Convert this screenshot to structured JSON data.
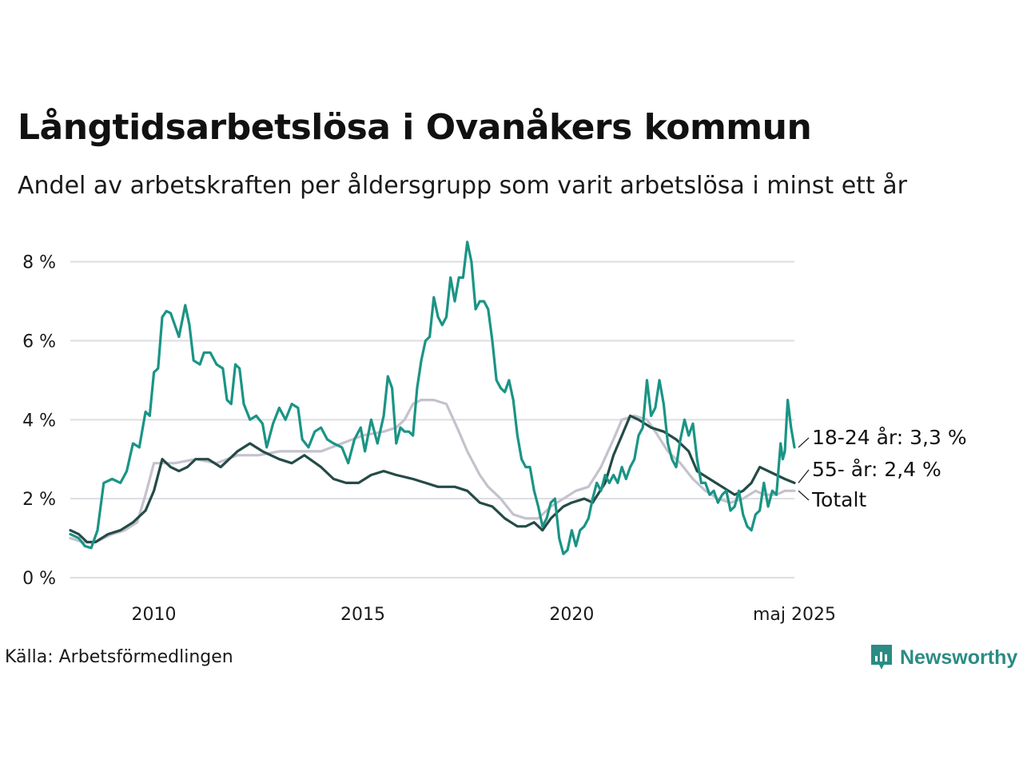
{
  "title": "Långtidsarbetslösa i Ovanåkers kommun",
  "subtitle": "Andel av arbetskraften per åldersgrupp som varit arbetslösa i minst ett år",
  "source": "Källa: Arbetsförmedlingen",
  "brand": "Newsworthy",
  "colors": {
    "accent": "#2a8c84"
  },
  "chart_data": {
    "type": "line",
    "x_unit": "decimal year",
    "xlim": [
      2008.0,
      2025.33
    ],
    "ylim": [
      0,
      8.6
    ],
    "x_ticks": [
      {
        "value": 2010,
        "label": "2010"
      },
      {
        "value": 2015,
        "label": "2015"
      },
      {
        "value": 2020,
        "label": "2020"
      },
      {
        "value": 2025.33,
        "label": "maj 2025"
      }
    ],
    "y_ticks": [
      {
        "value": 0,
        "label": "0 %"
      },
      {
        "value": 2,
        "label": "2 %"
      },
      {
        "value": 4,
        "label": "4 %"
      },
      {
        "value": 6,
        "label": "6 %"
      },
      {
        "value": 8,
        "label": "8 %"
      }
    ],
    "grid": true,
    "series": [
      {
        "name": "Totalt",
        "end_label": "Totalt",
        "color": "#c4c2cc",
        "points": [
          [
            2008.0,
            1.0
          ],
          [
            2008.3,
            0.9
          ],
          [
            2008.6,
            0.9
          ],
          [
            2009.0,
            1.1
          ],
          [
            2009.3,
            1.2
          ],
          [
            2009.6,
            1.4
          ],
          [
            2009.8,
            2.1
          ],
          [
            2010.0,
            2.9
          ],
          [
            2010.5,
            2.9
          ],
          [
            2011.0,
            3.0
          ],
          [
            2011.5,
            2.9
          ],
          [
            2012.0,
            3.1
          ],
          [
            2012.5,
            3.1
          ],
          [
            2013.0,
            3.2
          ],
          [
            2013.5,
            3.2
          ],
          [
            2014.0,
            3.2
          ],
          [
            2014.5,
            3.4
          ],
          [
            2015.0,
            3.6
          ],
          [
            2015.5,
            3.7
          ],
          [
            2015.8,
            3.8
          ],
          [
            2016.0,
            4.0
          ],
          [
            2016.2,
            4.4
          ],
          [
            2016.4,
            4.5
          ],
          [
            2016.7,
            4.5
          ],
          [
            2017.0,
            4.4
          ],
          [
            2017.3,
            3.7
          ],
          [
            2017.5,
            3.2
          ],
          [
            2017.8,
            2.6
          ],
          [
            2018.0,
            2.3
          ],
          [
            2018.3,
            2.0
          ],
          [
            2018.6,
            1.6
          ],
          [
            2018.9,
            1.5
          ],
          [
            2019.2,
            1.5
          ],
          [
            2019.5,
            1.8
          ],
          [
            2019.8,
            2.0
          ],
          [
            2020.1,
            2.2
          ],
          [
            2020.4,
            2.3
          ],
          [
            2020.7,
            2.8
          ],
          [
            2021.0,
            3.5
          ],
          [
            2021.2,
            4.0
          ],
          [
            2021.5,
            4.1
          ],
          [
            2021.8,
            4.0
          ],
          [
            2022.0,
            3.7
          ],
          [
            2022.3,
            3.2
          ],
          [
            2022.6,
            2.9
          ],
          [
            2022.9,
            2.5
          ],
          [
            2023.2,
            2.2
          ],
          [
            2023.5,
            2.0
          ],
          [
            2023.8,
            1.9
          ],
          [
            2024.1,
            2.0
          ],
          [
            2024.4,
            2.2
          ],
          [
            2024.6,
            2.1
          ],
          [
            2024.9,
            2.1
          ],
          [
            2025.1,
            2.2
          ],
          [
            2025.33,
            2.2
          ]
        ]
      },
      {
        "name": "55- år",
        "end_label": "55- år: 2,4 %",
        "color": "#244b47",
        "points": [
          [
            2008.0,
            1.2
          ],
          [
            2008.2,
            1.1
          ],
          [
            2008.4,
            0.9
          ],
          [
            2008.6,
            0.9
          ],
          [
            2008.9,
            1.1
          ],
          [
            2009.2,
            1.2
          ],
          [
            2009.5,
            1.4
          ],
          [
            2009.8,
            1.7
          ],
          [
            2010.0,
            2.2
          ],
          [
            2010.2,
            3.0
          ],
          [
            2010.4,
            2.8
          ],
          [
            2010.6,
            2.7
          ],
          [
            2010.8,
            2.8
          ],
          [
            2011.0,
            3.0
          ],
          [
            2011.3,
            3.0
          ],
          [
            2011.6,
            2.8
          ],
          [
            2011.8,
            3.0
          ],
          [
            2012.0,
            3.2
          ],
          [
            2012.3,
            3.4
          ],
          [
            2012.6,
            3.2
          ],
          [
            2013.0,
            3.0
          ],
          [
            2013.3,
            2.9
          ],
          [
            2013.6,
            3.1
          ],
          [
            2014.0,
            2.8
          ],
          [
            2014.3,
            2.5
          ],
          [
            2014.6,
            2.4
          ],
          [
            2014.9,
            2.4
          ],
          [
            2015.2,
            2.6
          ],
          [
            2015.5,
            2.7
          ],
          [
            2015.8,
            2.6
          ],
          [
            2016.2,
            2.5
          ],
          [
            2016.5,
            2.4
          ],
          [
            2016.8,
            2.3
          ],
          [
            2017.2,
            2.3
          ],
          [
            2017.5,
            2.2
          ],
          [
            2017.8,
            1.9
          ],
          [
            2018.1,
            1.8
          ],
          [
            2018.4,
            1.5
          ],
          [
            2018.7,
            1.3
          ],
          [
            2018.9,
            1.3
          ],
          [
            2019.1,
            1.4
          ],
          [
            2019.3,
            1.2
          ],
          [
            2019.5,
            1.5
          ],
          [
            2019.8,
            1.8
          ],
          [
            2020.0,
            1.9
          ],
          [
            2020.3,
            2.0
          ],
          [
            2020.5,
            1.9
          ],
          [
            2020.8,
            2.4
          ],
          [
            2021.0,
            3.1
          ],
          [
            2021.2,
            3.6
          ],
          [
            2021.4,
            4.1
          ],
          [
            2021.6,
            4.0
          ],
          [
            2021.9,
            3.8
          ],
          [
            2022.2,
            3.7
          ],
          [
            2022.5,
            3.5
          ],
          [
            2022.8,
            3.2
          ],
          [
            2023.0,
            2.7
          ],
          [
            2023.3,
            2.5
          ],
          [
            2023.6,
            2.3
          ],
          [
            2023.9,
            2.1
          ],
          [
            2024.1,
            2.2
          ],
          [
            2024.3,
            2.4
          ],
          [
            2024.5,
            2.8
          ],
          [
            2024.7,
            2.7
          ],
          [
            2024.9,
            2.6
          ],
          [
            2025.1,
            2.5
          ],
          [
            2025.33,
            2.4
          ]
        ]
      },
      {
        "name": "18-24 år",
        "end_label": "18-24 år: 3,3 %",
        "color": "#1a9485",
        "points": [
          [
            2008.0,
            1.1
          ],
          [
            2008.2,
            1.0
          ],
          [
            2008.35,
            0.8
          ],
          [
            2008.5,
            0.75
          ],
          [
            2008.65,
            1.2
          ],
          [
            2008.8,
            2.4
          ],
          [
            2009.0,
            2.5
          ],
          [
            2009.2,
            2.4
          ],
          [
            2009.35,
            2.7
          ],
          [
            2009.5,
            3.4
          ],
          [
            2009.65,
            3.3
          ],
          [
            2009.8,
            4.2
          ],
          [
            2009.9,
            4.1
          ],
          [
            2010.0,
            5.2
          ],
          [
            2010.1,
            5.3
          ],
          [
            2010.2,
            6.6
          ],
          [
            2010.3,
            6.75
          ],
          [
            2010.4,
            6.7
          ],
          [
            2010.6,
            6.1
          ],
          [
            2010.75,
            6.9
          ],
          [
            2010.85,
            6.4
          ],
          [
            2010.95,
            5.5
          ],
          [
            2011.1,
            5.4
          ],
          [
            2011.2,
            5.7
          ],
          [
            2011.35,
            5.7
          ],
          [
            2011.5,
            5.4
          ],
          [
            2011.65,
            5.3
          ],
          [
            2011.75,
            4.5
          ],
          [
            2011.85,
            4.4
          ],
          [
            2011.95,
            5.4
          ],
          [
            2012.05,
            5.3
          ],
          [
            2012.15,
            4.4
          ],
          [
            2012.3,
            4.0
          ],
          [
            2012.45,
            4.1
          ],
          [
            2012.6,
            3.9
          ],
          [
            2012.7,
            3.3
          ],
          [
            2012.85,
            3.9
          ],
          [
            2013.0,
            4.3
          ],
          [
            2013.15,
            4.0
          ],
          [
            2013.3,
            4.4
          ],
          [
            2013.45,
            4.3
          ],
          [
            2013.55,
            3.5
          ],
          [
            2013.7,
            3.3
          ],
          [
            2013.85,
            3.7
          ],
          [
            2014.0,
            3.8
          ],
          [
            2014.15,
            3.5
          ],
          [
            2014.3,
            3.4
          ],
          [
            2014.5,
            3.3
          ],
          [
            2014.65,
            2.9
          ],
          [
            2014.8,
            3.5
          ],
          [
            2014.95,
            3.8
          ],
          [
            2015.05,
            3.2
          ],
          [
            2015.2,
            4.0
          ],
          [
            2015.35,
            3.4
          ],
          [
            2015.5,
            4.1
          ],
          [
            2015.6,
            5.1
          ],
          [
            2015.7,
            4.8
          ],
          [
            2015.8,
            3.4
          ],
          [
            2015.9,
            3.8
          ],
          [
            2016.0,
            3.7
          ],
          [
            2016.1,
            3.7
          ],
          [
            2016.2,
            3.6
          ],
          [
            2016.3,
            4.8
          ],
          [
            2016.4,
            5.5
          ],
          [
            2016.5,
            6.0
          ],
          [
            2016.6,
            6.1
          ],
          [
            2016.7,
            7.1
          ],
          [
            2016.8,
            6.6
          ],
          [
            2016.9,
            6.4
          ],
          [
            2017.0,
            6.6
          ],
          [
            2017.1,
            7.6
          ],
          [
            2017.2,
            7.0
          ],
          [
            2017.3,
            7.6
          ],
          [
            2017.4,
            7.6
          ],
          [
            2017.5,
            8.5
          ],
          [
            2017.6,
            8.0
          ],
          [
            2017.7,
            6.8
          ],
          [
            2017.8,
            7.0
          ],
          [
            2017.9,
            7.0
          ],
          [
            2018.0,
            6.8
          ],
          [
            2018.1,
            6.0
          ],
          [
            2018.2,
            5.0
          ],
          [
            2018.3,
            4.8
          ],
          [
            2018.4,
            4.7
          ],
          [
            2018.5,
            5.0
          ],
          [
            2018.6,
            4.5
          ],
          [
            2018.7,
            3.6
          ],
          [
            2018.8,
            3.0
          ],
          [
            2018.9,
            2.8
          ],
          [
            2019.0,
            2.8
          ],
          [
            2019.1,
            2.2
          ],
          [
            2019.2,
            1.8
          ],
          [
            2019.3,
            1.3
          ],
          [
            2019.4,
            1.5
          ],
          [
            2019.5,
            1.9
          ],
          [
            2019.6,
            2.0
          ],
          [
            2019.7,
            1.0
          ],
          [
            2019.8,
            0.6
          ],
          [
            2019.9,
            0.7
          ],
          [
            2020.0,
            1.2
          ],
          [
            2020.1,
            0.8
          ],
          [
            2020.2,
            1.2
          ],
          [
            2020.3,
            1.3
          ],
          [
            2020.4,
            1.5
          ],
          [
            2020.5,
            2.0
          ],
          [
            2020.6,
            2.4
          ],
          [
            2020.7,
            2.2
          ],
          [
            2020.8,
            2.6
          ],
          [
            2020.9,
            2.4
          ],
          [
            2021.0,
            2.6
          ],
          [
            2021.1,
            2.4
          ],
          [
            2021.2,
            2.8
          ],
          [
            2021.3,
            2.5
          ],
          [
            2021.4,
            2.8
          ],
          [
            2021.5,
            3.0
          ],
          [
            2021.6,
            3.6
          ],
          [
            2021.7,
            3.8
          ],
          [
            2021.8,
            5.0
          ],
          [
            2021.9,
            4.1
          ],
          [
            2022.0,
            4.3
          ],
          [
            2022.1,
            5.0
          ],
          [
            2022.2,
            4.4
          ],
          [
            2022.3,
            3.4
          ],
          [
            2022.4,
            3.0
          ],
          [
            2022.5,
            2.8
          ],
          [
            2022.6,
            3.5
          ],
          [
            2022.7,
            4.0
          ],
          [
            2022.8,
            3.6
          ],
          [
            2022.9,
            3.9
          ],
          [
            2023.0,
            3.0
          ],
          [
            2023.1,
            2.4
          ],
          [
            2023.2,
            2.4
          ],
          [
            2023.3,
            2.1
          ],
          [
            2023.4,
            2.2
          ],
          [
            2023.5,
            1.9
          ],
          [
            2023.6,
            2.1
          ],
          [
            2023.7,
            2.2
          ],
          [
            2023.8,
            1.7
          ],
          [
            2023.9,
            1.8
          ],
          [
            2024.0,
            2.2
          ],
          [
            2024.1,
            1.6
          ],
          [
            2024.2,
            1.3
          ],
          [
            2024.3,
            1.2
          ],
          [
            2024.4,
            1.6
          ],
          [
            2024.5,
            1.7
          ],
          [
            2024.6,
            2.4
          ],
          [
            2024.7,
            1.8
          ],
          [
            2024.8,
            2.2
          ],
          [
            2024.9,
            2.1
          ],
          [
            2025.0,
            3.4
          ],
          [
            2025.05,
            3.0
          ],
          [
            2025.1,
            3.2
          ],
          [
            2025.17,
            4.5
          ],
          [
            2025.25,
            3.8
          ],
          [
            2025.33,
            3.3
          ]
        ]
      }
    ]
  }
}
